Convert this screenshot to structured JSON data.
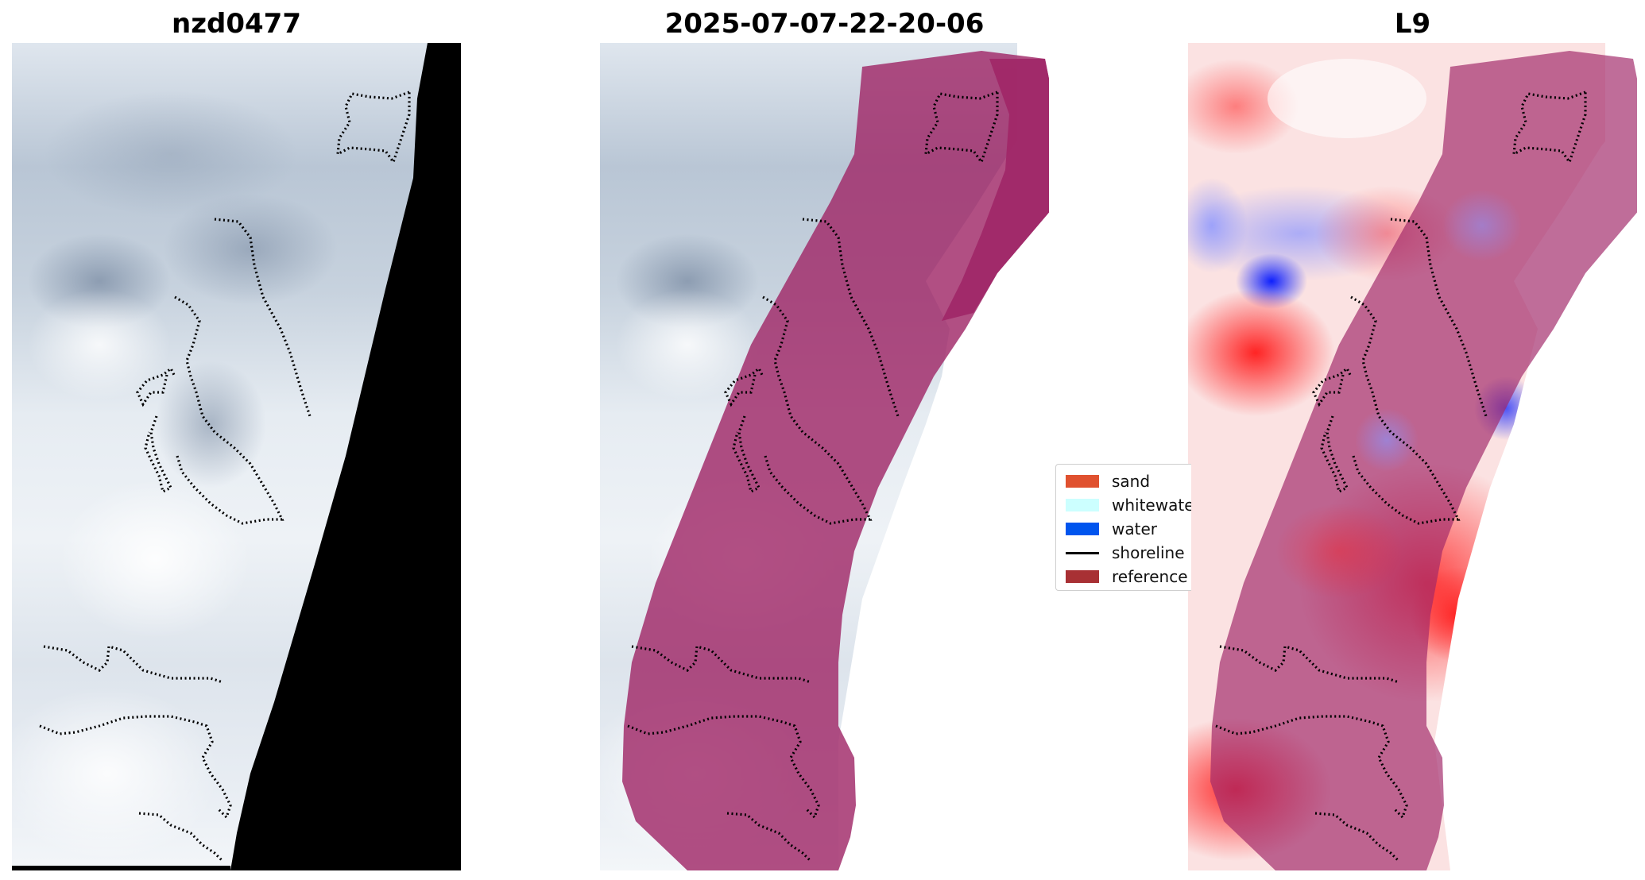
{
  "panels": [
    {
      "title": "nzd0477"
    },
    {
      "title": "2025-07-07-22-20-06"
    },
    {
      "title": "L9"
    }
  ],
  "legend": {
    "items": [
      {
        "label": "sand",
        "color": "#e0512f",
        "kind": "patch"
      },
      {
        "label": "whitewater",
        "color": "#ccffff",
        "kind": "patch"
      },
      {
        "label": "water",
        "color": "#0055ee",
        "kind": "patch"
      },
      {
        "label": "shoreline",
        "color": "#000000",
        "kind": "line"
      },
      {
        "label": "reference",
        "color": "#a83034",
        "kind": "patch"
      }
    ]
  },
  "colors": {
    "overlay": "#a02868",
    "nodata": "#000000",
    "imagery_light": "#e8edf3",
    "imagery_dark": "#8a9bb1",
    "index_positive": "#ff2a2a",
    "index_negative": "#1a2aff"
  }
}
